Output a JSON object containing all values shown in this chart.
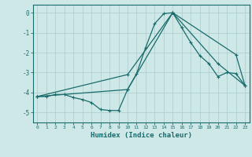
{
  "title": "",
  "xlabel": "Humidex (Indice chaleur)",
  "background_color": "#cee8e8",
  "grid_color": "#afd0d0",
  "line_color": "#1a6b6b",
  "xlim": [
    -0.5,
    23.5
  ],
  "ylim": [
    -5.5,
    0.4
  ],
  "yticks": [
    0,
    -1,
    -2,
    -3,
    -4,
    -5
  ],
  "xticks": [
    0,
    1,
    2,
    3,
    4,
    5,
    6,
    7,
    8,
    9,
    10,
    11,
    12,
    13,
    14,
    15,
    16,
    17,
    18,
    19,
    20,
    21,
    22,
    23
  ],
  "series1_x": [
    0,
    1,
    2,
    3,
    4,
    5,
    6,
    7,
    8,
    9,
    10,
    11,
    12,
    13,
    14,
    15,
    16,
    17,
    18,
    19,
    20,
    21,
    22,
    23
  ],
  "series1_y": [
    -4.2,
    -4.2,
    -4.1,
    -4.1,
    -4.25,
    -4.35,
    -4.5,
    -4.85,
    -4.9,
    -4.9,
    -3.85,
    -3.05,
    -1.75,
    -0.55,
    -0.05,
    0.0,
    -0.75,
    -1.5,
    -2.15,
    -2.55,
    -3.2,
    -3.0,
    -3.05,
    -3.65
  ],
  "series2_x": [
    0,
    10,
    15,
    22,
    23
  ],
  "series2_y": [
    -4.2,
    -3.1,
    0.0,
    -2.1,
    -3.65
  ],
  "series3_x": [
    0,
    10,
    15,
    20,
    23
  ],
  "series3_y": [
    -4.2,
    -3.85,
    0.0,
    -2.55,
    -3.65
  ]
}
